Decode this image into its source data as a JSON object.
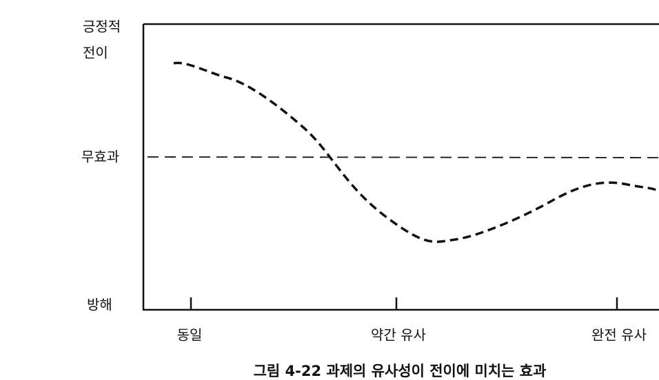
{
  "y_axis": {
    "top_label": [
      "긍정적",
      "전이"
    ],
    "middle_label": "무효과",
    "bottom_label": "방해"
  },
  "x_axis": {
    "labels": [
      "동일",
      "약간 유사",
      "완전 유사"
    ]
  },
  "caption": "그림 4-22 과제의 유사성이 전이에 미치는 효과"
}
